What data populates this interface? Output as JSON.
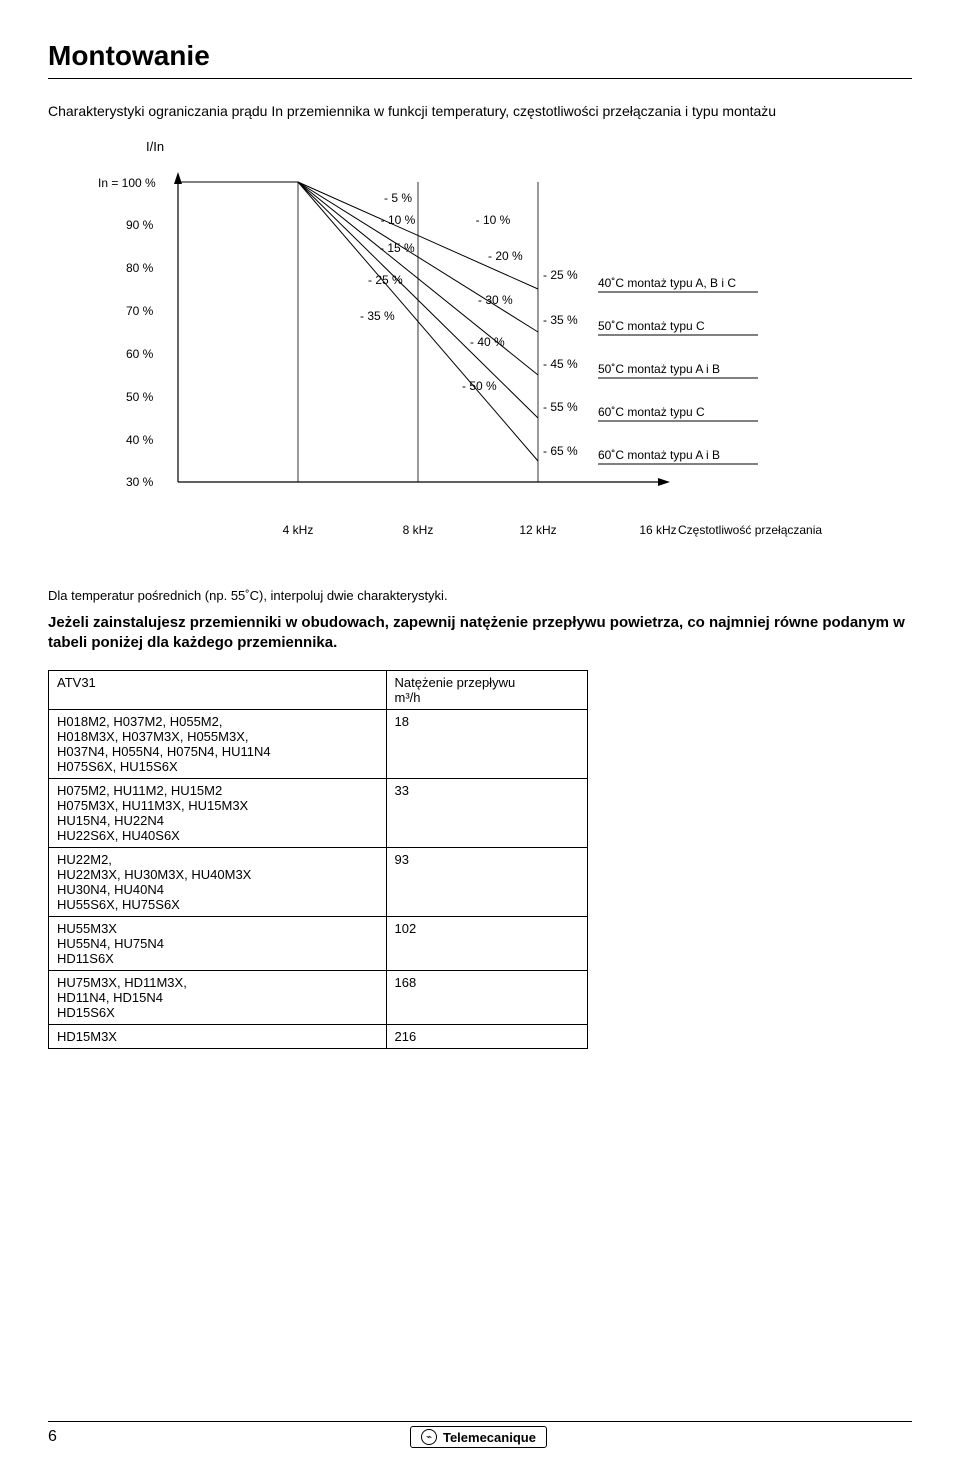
{
  "page_number": "6",
  "brand": "Telemecanique",
  "title": "Montowanie",
  "subtitle": "Charakterystyki ograniczania prądu In przemiennika w funkcji temperatury, częstotliwości przełączania i typu montażu",
  "y_axis_label": "I/In",
  "chart": {
    "background_color": "#ffffff",
    "axis_color": "#000000",
    "grid_color": "#000000",
    "text_color": "#000000",
    "font_size": 12,
    "y_ticks": [
      {
        "label": "In = 100 %",
        "pct": 100
      },
      {
        "label": "90 %",
        "pct": 90
      },
      {
        "label": "80 %",
        "pct": 80
      },
      {
        "label": "70 %",
        "pct": 70
      },
      {
        "label": "60 %",
        "pct": 60
      },
      {
        "label": "50 %",
        "pct": 50
      },
      {
        "label": "40 %",
        "pct": 40
      },
      {
        "label": "30 %",
        "pct": 30
      }
    ],
    "x_ticks": [
      "4 kHz",
      "8 kHz",
      "12 kHz",
      "16 kHz"
    ],
    "x_axis_right_label": "Częstotliwość przełączania",
    "right_labels": [
      {
        "text": "40˚C montaż typu A, B i C",
        "pct": 75
      },
      {
        "text": "50˚C montaż typu C",
        "pct": 65
      },
      {
        "text": "50˚C montaż typu A i B",
        "pct": 55
      },
      {
        "text": "60˚C montaż typu C",
        "pct": 45
      },
      {
        "text": "60˚C montaż typu A i B",
        "pct": 35
      }
    ],
    "lines": [
      {
        "start_pct": 100,
        "end_pct": 75,
        "mid_labels": [
          "- 5 %",
          "- 10 %",
          "- 15 %",
          "- 25 %",
          "- 35 %"
        ],
        "right_labels": [
          "- 10 %",
          "- 20 %",
          "- 30 %",
          "- 40 %",
          "- 50 %"
        ]
      },
      {
        "start_pct": 100,
        "end_pct": 35,
        "right_labels_extra": [
          "- 25 %",
          "- 35 %",
          "- 45 %",
          "- 55 %",
          "- 65 %"
        ]
      }
    ],
    "line_labels_col_mid": [
      "- 5 %",
      "- 10 %",
      "- 15 %",
      "- 25 %",
      "- 35 %"
    ],
    "line_labels_col_right": [
      "- 10 %",
      "- 20 %",
      "- 30 %",
      "- 40 %",
      "- 50 %"
    ],
    "line_labels_col_far": [
      "- 25 %",
      "- 35 %",
      "- 45 %",
      "- 55 %",
      "- 65 %"
    ]
  },
  "note_below_chart": "Dla temperatur pośrednich (np. 55˚C), interpoluj dwie charakterystyki.",
  "bold_paragraph": "Jeżeli zainstalujesz przemienniki w obudowach, zapewnij natężenie przepływu powietrza, co najmniej równe podanym w tabeli poniżej dla każdego przemiennika.",
  "table": {
    "header_left": "ATV31",
    "header_right_line1": "Natężenie przepływu",
    "header_right_line2": "m³/h",
    "rows": [
      {
        "models": "H018M2, H037M2, H055M2,\nH018M3X, H037M3X, H055M3X,\nH037N4, H055N4, H075N4, HU11N4\nH075S6X, HU15S6X",
        "flow": "18"
      },
      {
        "models": "H075M2, HU11M2, HU15M2\nH075M3X, HU11M3X, HU15M3X\nHU15N4, HU22N4\nHU22S6X, HU40S6X",
        "flow": "33"
      },
      {
        "models": "HU22M2,\nHU22M3X, HU30M3X, HU40M3X\nHU30N4, HU40N4\nHU55S6X, HU75S6X",
        "flow": "93"
      },
      {
        "models": "HU55M3X\nHU55N4, HU75N4\nHD11S6X",
        "flow": "102"
      },
      {
        "models": "HU75M3X, HD11M3X,\nHD11N4, HD15N4\nHD15S6X",
        "flow": "168"
      },
      {
        "models": "HD15M3X",
        "flow": "216"
      }
    ]
  }
}
